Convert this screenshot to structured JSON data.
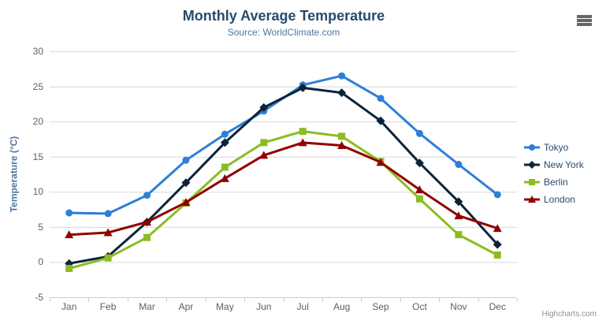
{
  "chart_data": {
    "type": "line",
    "title": "Monthly Average Temperature",
    "subtitle": "Source: WorldClimate.com",
    "xlabel": "",
    "ylabel": "Temperature (°C)",
    "ylim": [
      -5,
      30
    ],
    "yticks": [
      30,
      25,
      20,
      15,
      10,
      5,
      0,
      -5
    ],
    "grid": true,
    "legend_position": "right",
    "categories": [
      "Jan",
      "Feb",
      "Mar",
      "Apr",
      "May",
      "Jun",
      "Jul",
      "Aug",
      "Sep",
      "Oct",
      "Nov",
      "Dec"
    ],
    "series": [
      {
        "name": "Tokyo",
        "color": "#2f7ed8",
        "marker": "circle",
        "values": [
          7.0,
          6.9,
          9.5,
          14.5,
          18.2,
          21.5,
          25.2,
          26.5,
          23.3,
          18.3,
          13.9,
          9.6
        ]
      },
      {
        "name": "New York",
        "color": "#0d233a",
        "marker": "diamond",
        "values": [
          -0.2,
          0.8,
          5.7,
          11.3,
          17.0,
          22.0,
          24.8,
          24.1,
          20.1,
          14.1,
          8.6,
          2.5
        ]
      },
      {
        "name": "Berlin",
        "color": "#8bbc21",
        "marker": "square",
        "values": [
          -0.9,
          0.6,
          3.5,
          8.4,
          13.5,
          17.0,
          18.6,
          17.9,
          14.3,
          9.0,
          3.9,
          1.0
        ]
      },
      {
        "name": "London",
        "color": "#910000",
        "marker": "triangle",
        "values": [
          3.9,
          4.2,
          5.7,
          8.5,
          11.9,
          15.2,
          17.0,
          16.6,
          14.2,
          10.3,
          6.6,
          4.8
        ]
      }
    ]
  },
  "export_menu": {
    "icon": "hamburger-icon"
  },
  "credits": {
    "label": "Highcharts.com"
  },
  "colors": {
    "background": "#ffffff",
    "title_text": "#274b6d",
    "subtitle_text": "#4d759e",
    "axis_title_text": "#4d759e",
    "axis_label_text": "#606060",
    "gridline": "#d8d8d8",
    "axis_line": "#c0d0e0",
    "legend_text": "#274b6d",
    "credits_text": "#909090",
    "menu_icon": "#666666"
  }
}
